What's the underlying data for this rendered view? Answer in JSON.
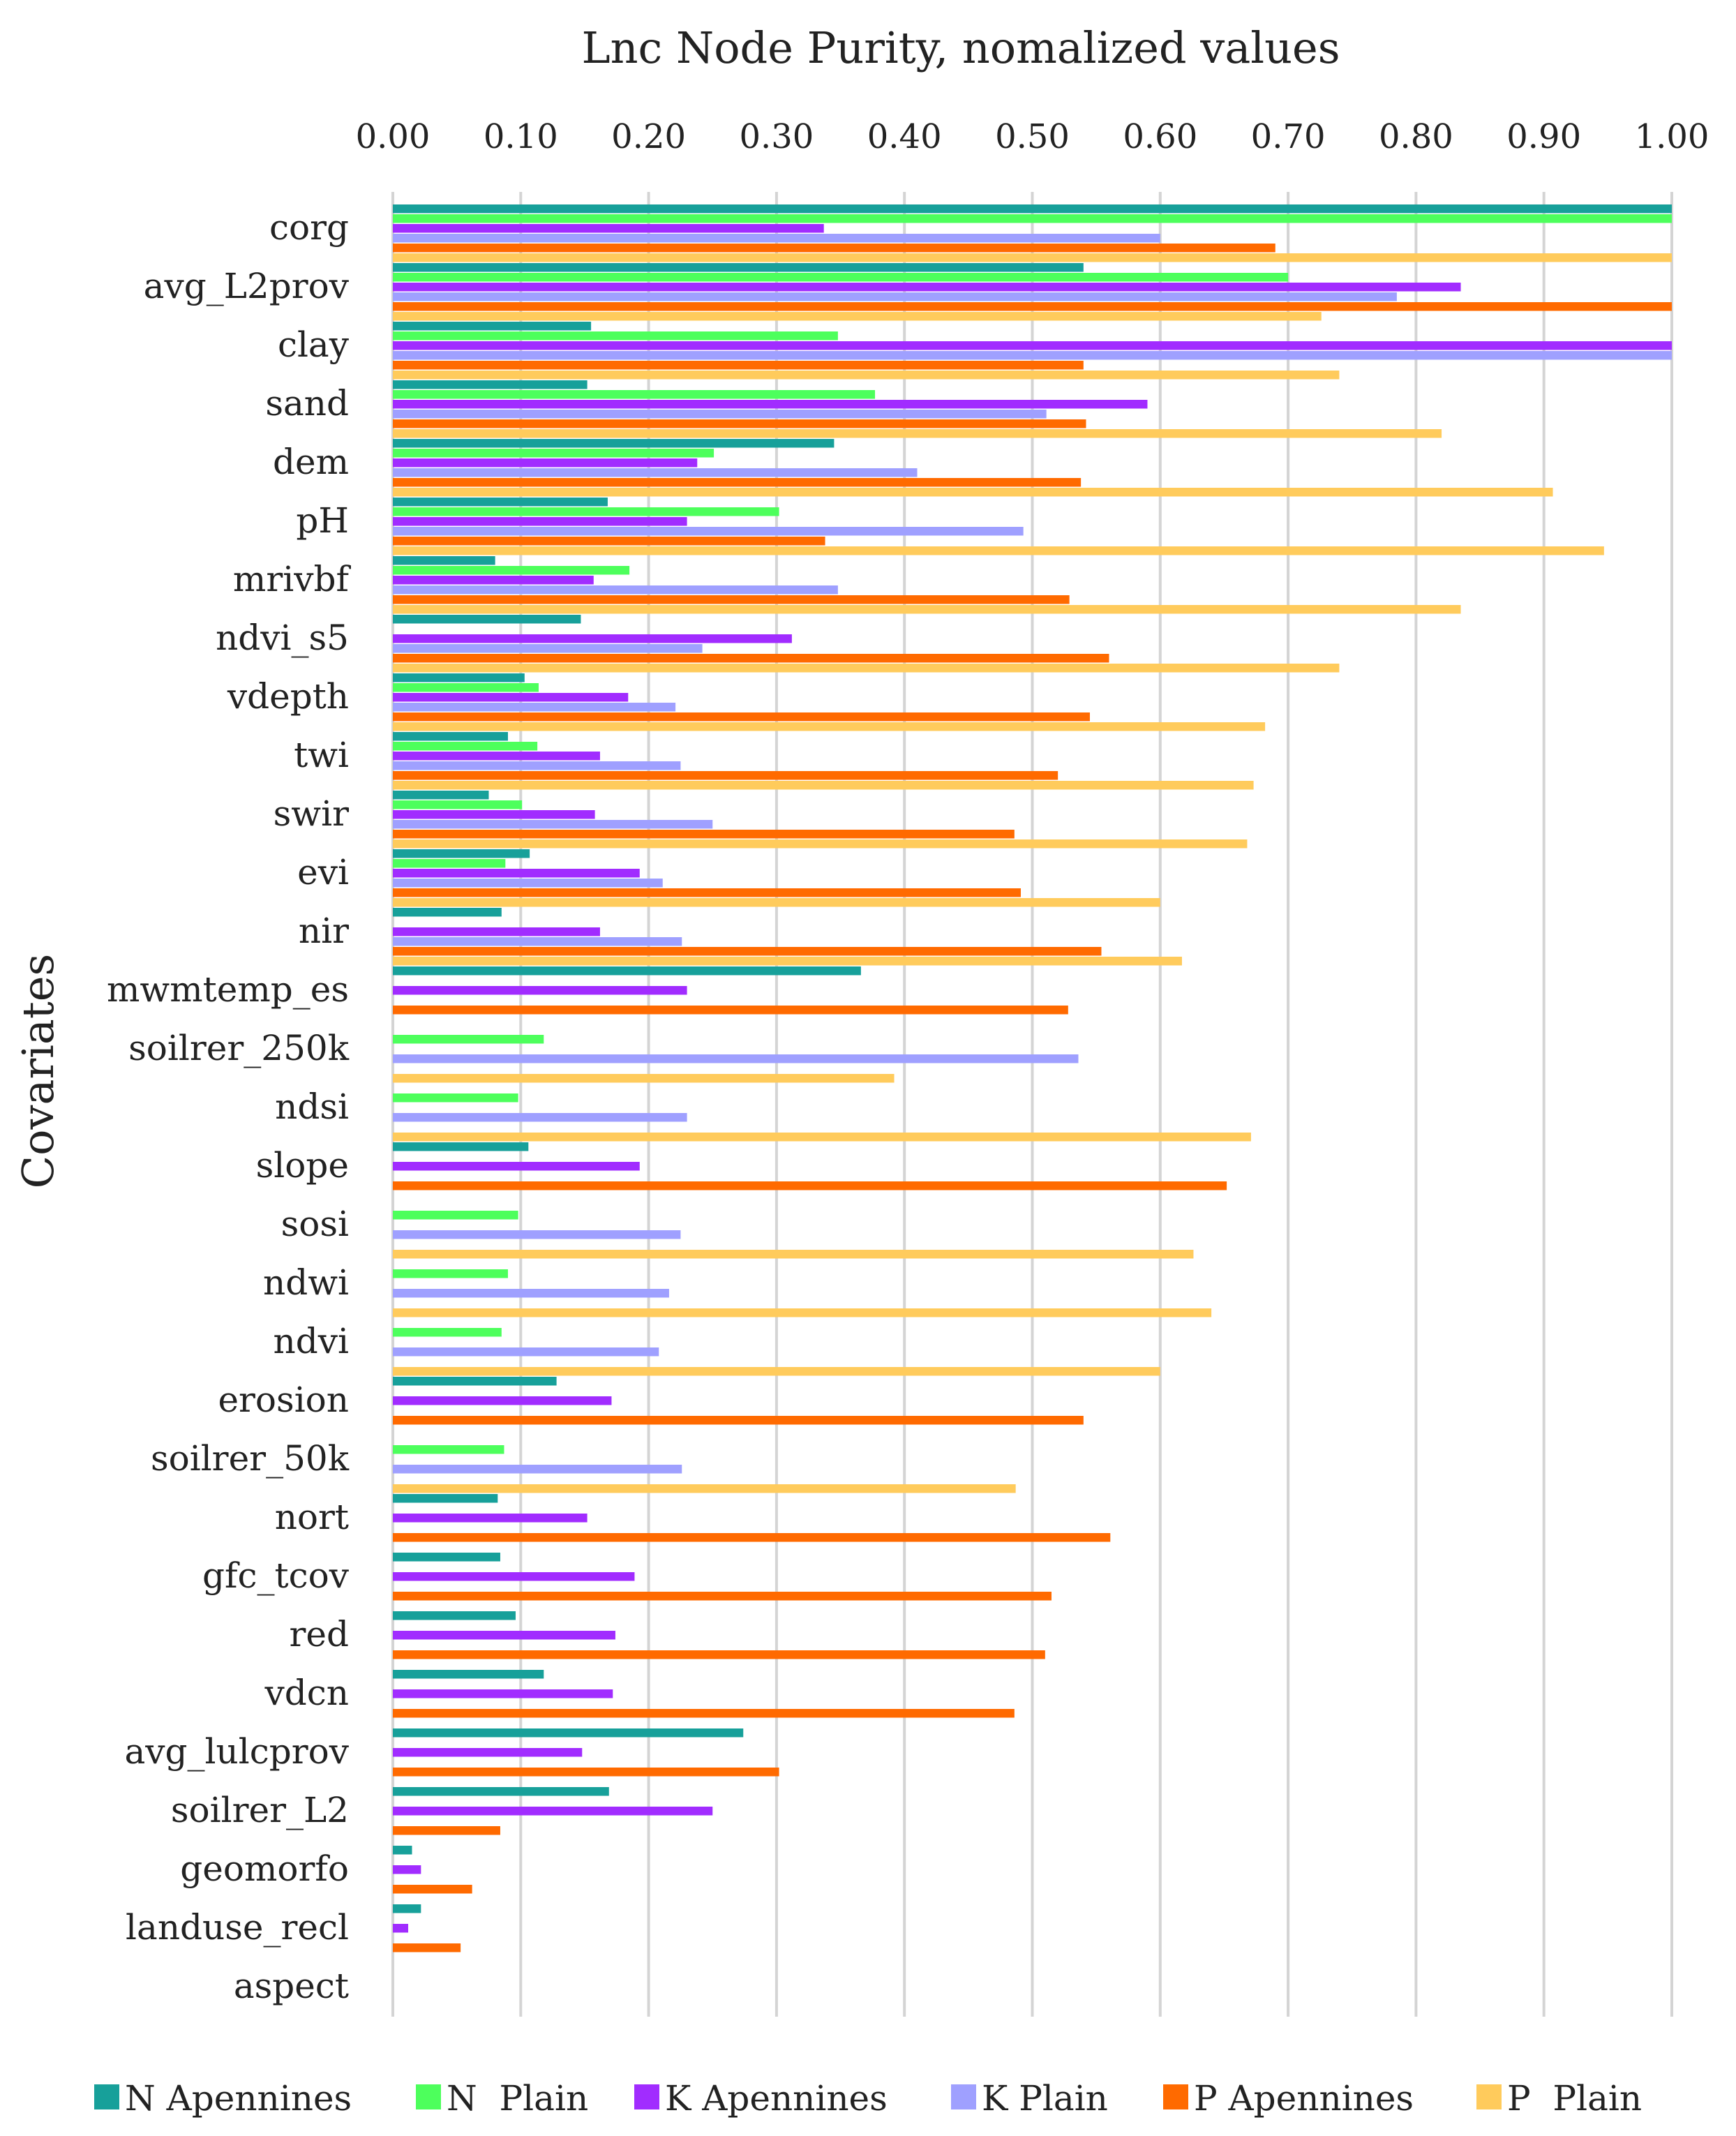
{
  "chart_data": {
    "type": "bar",
    "orientation": "horizontal",
    "title": "Lnc Node Purity, nomalized values",
    "xlabel": "Lnc Node Purity, nomalized values",
    "ylabel": "Covariates",
    "xlim": [
      0,
      1
    ],
    "x_ticks": [
      "0.00",
      "0.10",
      "0.20",
      "0.30",
      "0.40",
      "0.50",
      "0.60",
      "0.70",
      "0.80",
      "0.90",
      "1.00"
    ],
    "grid": true,
    "legend_position": "bottom",
    "categories": [
      "corg",
      "avg_L2prov",
      "clay",
      "sand",
      "dem",
      "pH",
      "mrivbf",
      "ndvi_s5",
      "vdepth",
      "twi",
      "swir",
      "evi",
      "nir",
      "mwmtemp_es",
      "soilrer_250k",
      "ndsi",
      "slope",
      "sosi",
      "ndwi",
      "ndvi",
      "erosion",
      "soilrer_50k",
      "nort",
      "gfc_tcov",
      "red",
      "vdcn",
      "avg_lulcprov",
      "soilrer_L2",
      "geomorfo",
      "landuse_recl",
      "aspect"
    ],
    "series": [
      {
        "name": "N Apennines",
        "color": "#17a09a",
        "values": [
          1.0,
          0.54,
          0.155,
          0.152,
          0.345,
          0.168,
          0.08,
          0.147,
          0.103,
          0.09,
          0.075,
          0.107,
          0.085,
          0.366,
          null,
          null,
          0.106,
          null,
          null,
          null,
          0.128,
          null,
          0.082,
          0.084,
          0.096,
          0.118,
          0.274,
          0.169,
          0.015,
          0.022,
          null
        ]
      },
      {
        "name": "N  Plain",
        "color": "#4dff5c",
        "values": [
          1.0,
          0.7,
          0.348,
          0.377,
          0.251,
          0.302,
          0.185,
          null,
          0.114,
          0.113,
          0.101,
          0.088,
          null,
          null,
          0.118,
          0.098,
          null,
          0.098,
          0.09,
          0.085,
          null,
          0.087,
          null,
          null,
          null,
          null,
          null,
          null,
          null,
          null,
          null
        ]
      },
      {
        "name": "K Apennines",
        "color": "#a12cff",
        "values": [
          0.337,
          0.835,
          1.0,
          0.59,
          0.238,
          0.23,
          0.157,
          0.312,
          0.184,
          0.162,
          0.158,
          0.193,
          0.162,
          0.23,
          null,
          null,
          0.193,
          null,
          null,
          null,
          0.171,
          null,
          0.152,
          0.189,
          0.174,
          0.172,
          0.148,
          0.25,
          0.022,
          0.012,
          null
        ]
      },
      {
        "name": "K Plain",
        "color": "#9fa0ff",
        "values": [
          0.6,
          0.785,
          1.0,
          0.511,
          0.41,
          0.493,
          0.348,
          0.242,
          0.221,
          0.225,
          0.25,
          0.211,
          0.226,
          null,
          0.536,
          0.23,
          null,
          0.225,
          0.216,
          0.208,
          null,
          0.226,
          null,
          null,
          null,
          null,
          null,
          null,
          null,
          null,
          null
        ]
      },
      {
        "name": "P Apennines",
        "color": "#ff6a00",
        "values": [
          0.69,
          1.0,
          0.54,
          0.542,
          0.538,
          0.338,
          0.529,
          0.56,
          0.545,
          0.52,
          0.486,
          0.491,
          0.554,
          0.528,
          null,
          null,
          0.652,
          null,
          null,
          null,
          0.54,
          null,
          0.561,
          0.515,
          0.51,
          0.486,
          0.302,
          0.084,
          0.062,
          0.053,
          null
        ]
      },
      {
        "name": "P  Plain",
        "color": "#ffcb5c",
        "values": [
          1.0,
          0.726,
          0.74,
          0.82,
          0.907,
          0.947,
          0.835,
          0.74,
          0.682,
          0.673,
          0.668,
          0.6,
          0.617,
          null,
          0.392,
          0.671,
          null,
          0.626,
          0.64,
          0.6,
          null,
          0.487,
          null,
          null,
          null,
          null,
          null,
          null,
          null,
          null,
          null
        ]
      }
    ]
  }
}
